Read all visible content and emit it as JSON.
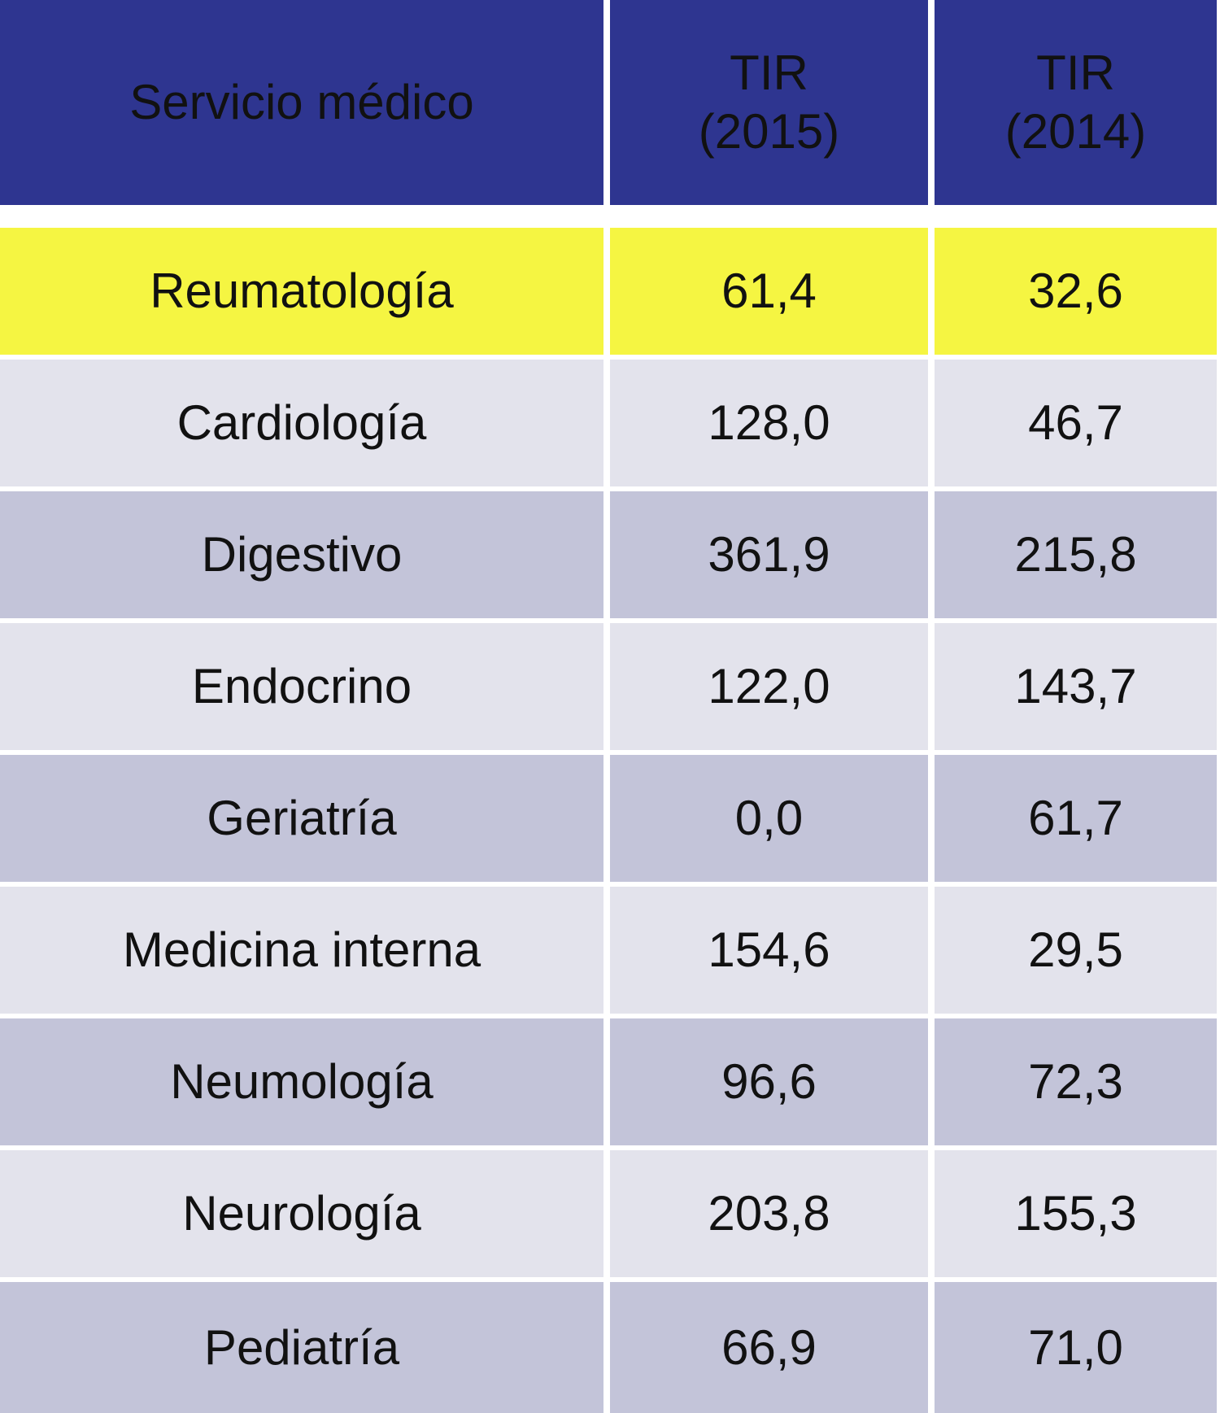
{
  "table": {
    "header": [
      [
        "Servicio médico"
      ],
      [
        "TIR",
        "(2015)"
      ],
      [
        "TIR",
        "(2014)"
      ]
    ],
    "rows": [
      [
        "Reumatología",
        "61,4",
        "32,6"
      ],
      [
        "Cardiología",
        "128,0",
        "46,7"
      ],
      [
        "Digestivo",
        "361,9",
        "215,8"
      ],
      [
        "Endocrino",
        "122,0",
        "143,7"
      ],
      [
        "Geriatría",
        "0,0",
        "61,7"
      ],
      [
        "Medicina interna",
        "154,6",
        "29,5"
      ],
      [
        "Neumología",
        "96,6",
        "72,3"
      ],
      [
        "Neurología",
        "203,8",
        "155,3"
      ],
      [
        "Pediatría",
        "66,9",
        "71,0"
      ]
    ]
  }
}
